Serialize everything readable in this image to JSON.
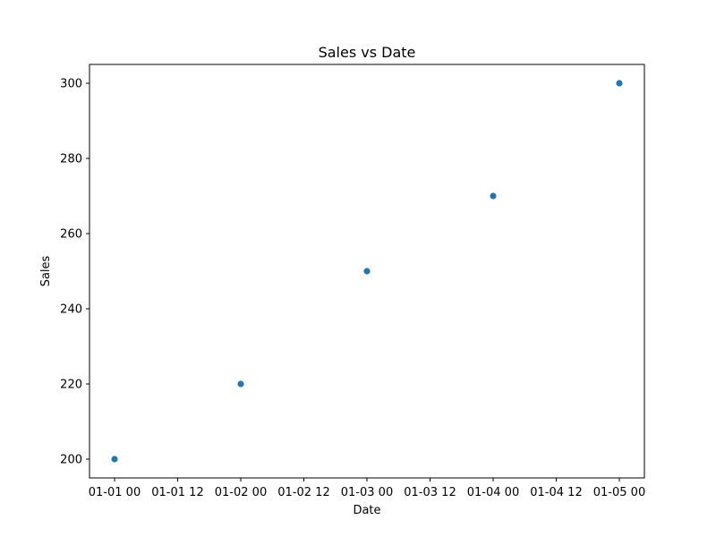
{
  "chart_data": {
    "type": "scatter",
    "title": "Sales vs Date",
    "xlabel": "Date",
    "ylabel": "Sales",
    "x_tick_labels": [
      "01-01 00",
      "01-01 12",
      "01-02 00",
      "01-02 12",
      "01-03 00",
      "01-03 12",
      "01-04 00",
      "01-04 12",
      "01-05 00"
    ],
    "y_tick_labels": [
      "200",
      "220",
      "240",
      "260",
      "280",
      "300"
    ],
    "x": [
      "01-01 00",
      "01-02 00",
      "01-03 00",
      "01-04 00",
      "01-05 00"
    ],
    "y": [
      200,
      220,
      250,
      270,
      300
    ],
    "ylim": [
      195,
      305
    ],
    "grid": false,
    "point_color": "#1f77b4"
  }
}
